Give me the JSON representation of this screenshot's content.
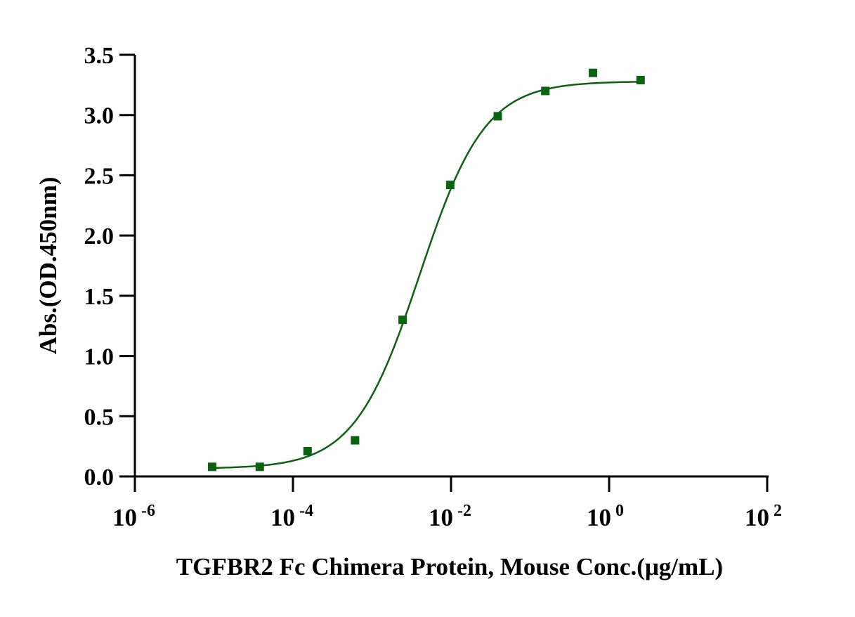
{
  "chart_data": {
    "type": "scatter",
    "title": "",
    "xlabel": "TGFBR2 Fc Chimera Protein, Mouse Conc.(μg/mL)",
    "ylabel": "Abs.(OD.450nm)",
    "xscale": "log",
    "xlim": [
      1e-06,
      100
    ],
    "ylim": [
      0,
      3.5
    ],
    "yticks": [
      "0.0",
      "0.5",
      "1.0",
      "1.5",
      "2.0",
      "2.5",
      "3.0",
      "3.5"
    ],
    "xticks": [
      {
        "base": "10",
        "exp": "-6"
      },
      {
        "base": "10",
        "exp": "-4"
      },
      {
        "base": "10",
        "exp": "-2"
      },
      {
        "base": "10",
        "exp": "0"
      },
      {
        "base": "10",
        "exp": "2"
      }
    ],
    "grid": false,
    "series": [
      {
        "name": "TGFBR2 Fc Chimera Protein, Mouse",
        "color": "#0b6311",
        "x": [
          9.5e-06,
          3.8e-05,
          0.000153,
          0.00061,
          0.00244,
          0.00977,
          0.039,
          0.156,
          0.625,
          2.5
        ],
        "y": [
          0.08,
          0.08,
          0.21,
          0.3,
          1.3,
          2.42,
          2.99,
          3.2,
          3.35,
          3.29
        ],
        "fit": {
          "model": "4PL",
          "bottom": 0.065,
          "top": 3.28,
          "ec50": 0.004,
          "hill": 1.05
        }
      }
    ]
  }
}
